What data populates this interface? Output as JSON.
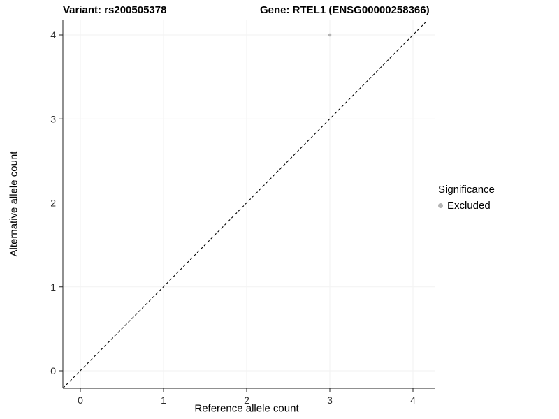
{
  "title": {
    "variant": "Variant: rs200505378",
    "gene": "Gene: RTEL1 (ENSG00000258366)"
  },
  "chart_data": {
    "type": "scatter",
    "title": "Variant: rs200505378   Gene: RTEL1 (ENSG00000258366)",
    "xlabel": "Reference allele count",
    "ylabel": "Alternative allele count",
    "xlim": [
      -0.2,
      4.3
    ],
    "ylim": [
      -0.2,
      4.2
    ],
    "x_ticks": [
      0,
      1,
      2,
      3,
      4
    ],
    "y_ticks": [
      0,
      1,
      2,
      3,
      4
    ],
    "x_tick_labels": [
      "0",
      "1",
      "2",
      "3",
      "4"
    ],
    "y_tick_labels": [
      "0",
      "1",
      "2",
      "3",
      "4"
    ],
    "grid": true,
    "grid_color": "#f2f2f2",
    "axis_color": "#222222",
    "reference_line": {
      "type": "identity",
      "equation": "y = x",
      "style": "dashed",
      "color": "#000000"
    },
    "series": [
      {
        "name": "Excluded",
        "color": "#b4b4b4",
        "points": [
          {
            "x": 3,
            "y": 4
          }
        ]
      }
    ],
    "legend": {
      "title": "Significance",
      "position": "right",
      "entries": [
        {
          "label": "Excluded",
          "color": "#b4b4b4"
        }
      ]
    }
  }
}
